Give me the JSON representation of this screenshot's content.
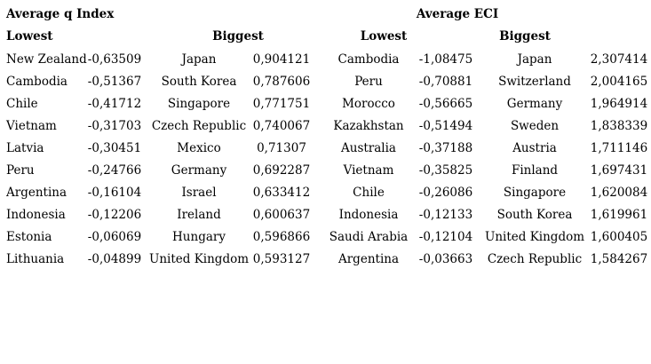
{
  "page": {
    "background": "#ffffff",
    "text_color": "#000000"
  },
  "sections": [
    {
      "title": "Average q Index",
      "headers": {
        "lowest": "Lowest",
        "biggest": "Biggest"
      },
      "lowest": [
        {
          "country": "New Zealand",
          "value": "-0,63509"
        },
        {
          "country": "Cambodia",
          "value": "-0,51367"
        },
        {
          "country": "Chile",
          "value": "-0,41712"
        },
        {
          "country": "Vietnam",
          "value": "-0,31703"
        },
        {
          "country": "Latvia",
          "value": "-0,30451"
        },
        {
          "country": "Peru",
          "value": "-0,24766"
        },
        {
          "country": "Argentina",
          "value": "-0,16104"
        },
        {
          "country": "Indonesia",
          "value": "-0,12206"
        },
        {
          "country": "Estonia",
          "value": "-0,06069"
        },
        {
          "country": "Lithuania",
          "value": "-0,04899"
        }
      ],
      "biggest": [
        {
          "country": "Japan",
          "value": "0,904121"
        },
        {
          "country": "South Korea",
          "value": "0,787606"
        },
        {
          "country": "Singapore",
          "value": "0,771751"
        },
        {
          "country": "Czech Republic",
          "value": "0,740067"
        },
        {
          "country": "Mexico",
          "value": "0,71307"
        },
        {
          "country": "Germany",
          "value": "0,692287"
        },
        {
          "country": "Israel",
          "value": "0,633412"
        },
        {
          "country": "Ireland",
          "value": "0,600637"
        },
        {
          "country": "Hungary",
          "value": "0,596866"
        },
        {
          "country": "United Kingdom",
          "value": "0,593127"
        }
      ]
    },
    {
      "title": "Average ECI",
      "headers": {
        "lowest": "Lowest",
        "biggest": "Biggest"
      },
      "lowest": [
        {
          "country": "Cambodia",
          "value": "-1,08475"
        },
        {
          "country": "Peru",
          "value": "-0,70881"
        },
        {
          "country": "Morocco",
          "value": "-0,56665"
        },
        {
          "country": "Kazakhstan",
          "value": "-0,51494"
        },
        {
          "country": "Australia",
          "value": "-0,37188"
        },
        {
          "country": "Vietnam",
          "value": "-0,35825"
        },
        {
          "country": "Chile",
          "value": "-0,26086"
        },
        {
          "country": "Indonesia",
          "value": "-0,12133"
        },
        {
          "country": "Saudi Arabia",
          "value": "-0,12104"
        },
        {
          "country": "Argentina",
          "value": "-0,03663"
        }
      ],
      "biggest": [
        {
          "country": "Japan",
          "value": "2,307414"
        },
        {
          "country": "Switzerland",
          "value": "2,004165"
        },
        {
          "country": "Germany",
          "value": "1,964914"
        },
        {
          "country": "Sweden",
          "value": "1,838339"
        },
        {
          "country": "Austria",
          "value": "1,711146"
        },
        {
          "country": "Finland",
          "value": "1,697431"
        },
        {
          "country": "Singapore",
          "value": "1,620084"
        },
        {
          "country": "South Korea",
          "value": "1,619961"
        },
        {
          "country": "United Kingdom",
          "value": "1,600405"
        },
        {
          "country": "Czech Republic",
          "value": "1,584267"
        }
      ]
    }
  ]
}
